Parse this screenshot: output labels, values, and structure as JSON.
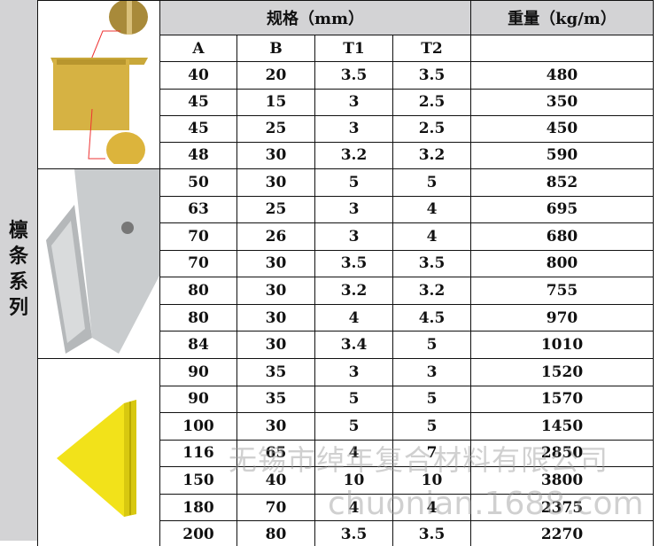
{
  "side_label": "檩条系列",
  "header": {
    "spec": "规格（mm）",
    "weight": "重量（kg/m）",
    "columns": [
      "A",
      "B",
      "T1",
      "T2"
    ]
  },
  "rows": [
    [
      "40",
      "20",
      "3.5",
      "3.5",
      "480"
    ],
    [
      "45",
      "15",
      "3",
      "2.5",
      "350"
    ],
    [
      "45",
      "25",
      "3",
      "2.5",
      "450"
    ],
    [
      "48",
      "30",
      "3.2",
      "3.2",
      "590"
    ],
    [
      "50",
      "30",
      "5",
      "5",
      "852"
    ],
    [
      "63",
      "25",
      "3",
      "4",
      "695"
    ],
    [
      "70",
      "26",
      "3",
      "4",
      "680"
    ],
    [
      "70",
      "30",
      "3.5",
      "3.5",
      "800"
    ],
    [
      "80",
      "30",
      "3.2",
      "3.2",
      "755"
    ],
    [
      "80",
      "30",
      "4",
      "4.5",
      "970"
    ],
    [
      "84",
      "30",
      "3.4",
      "5",
      "1010"
    ],
    [
      "90",
      "35",
      "3",
      "3",
      "1520"
    ],
    [
      "90",
      "35",
      "5",
      "5",
      "1570"
    ],
    [
      "100",
      "30",
      "5",
      "5",
      "1450"
    ],
    [
      "116",
      "65",
      "4",
      "7",
      "2850"
    ],
    [
      "150",
      "40",
      "10",
      "10",
      "3800"
    ],
    [
      "180",
      "70",
      "4",
      "4",
      "2375"
    ],
    [
      "200",
      "80",
      "3.5",
      "3.5",
      "2270"
    ]
  ],
  "watermark": {
    "company": "无锡市绰年复合材料有限公司",
    "site": "chuonian.1688.com"
  },
  "colors": {
    "header_bg": "#d3d3d5",
    "yellow": "#e8c33a"
  }
}
